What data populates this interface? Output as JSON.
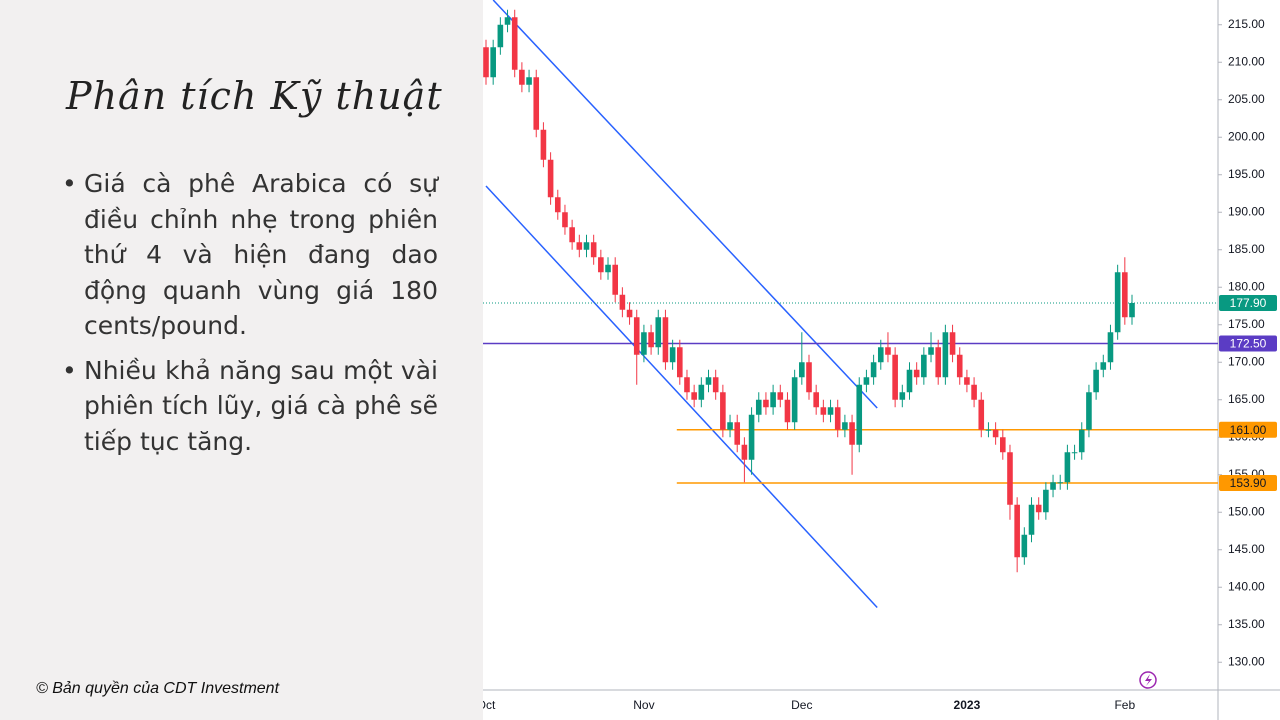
{
  "slide": {
    "title": "Phân tích Kỹ thuật",
    "bullets": [
      "Giá cà phê Arabica có sự điều chỉnh nhẹ trong phiên thứ 4 và hiện đang dao động quanh vùng giá 180 cents/pound.",
      "Nhiều khả năng sau một vài phiên tích lũy, giá cà phê sẽ tiếp tục tăng."
    ],
    "footer": "© Bản quyền của CDT Investment"
  },
  "chart_data": {
    "type": "candlestick",
    "up_color": "#089981",
    "down_color": "#f23645",
    "categories": [
      "Oct",
      null,
      null,
      null,
      null,
      null,
      null,
      null,
      null,
      null,
      null,
      null,
      null,
      null,
      null,
      null,
      null,
      null,
      null,
      null,
      null,
      null,
      "Nov",
      null,
      null,
      null,
      null,
      null,
      null,
      null,
      null,
      null,
      null,
      null,
      null,
      null,
      null,
      null,
      null,
      null,
      null,
      null,
      null,
      null,
      "Dec",
      null,
      null,
      null,
      null,
      null,
      null,
      null,
      null,
      null,
      null,
      null,
      null,
      null,
      null,
      null,
      null,
      null,
      null,
      null,
      null,
      null,
      null,
      "2023",
      null,
      null,
      null,
      null,
      null,
      null,
      null,
      null,
      null,
      null,
      null,
      null,
      null,
      null,
      null,
      null,
      null,
      null,
      null,
      null,
      null,
      "Feb",
      null
    ],
    "open": [
      212,
      208,
      212,
      215,
      216,
      209,
      207,
      208,
      201,
      197,
      192,
      190,
      188,
      186,
      185,
      186,
      184,
      182,
      183,
      179,
      177,
      176,
      171,
      174,
      172,
      176,
      170,
      172,
      168,
      166,
      165,
      167,
      168,
      166,
      161,
      162,
      159,
      157,
      163,
      165,
      164,
      166,
      165,
      162,
      168,
      170,
      166,
      164,
      163,
      164,
      161,
      162,
      159,
      167,
      168,
      170,
      172,
      171,
      165,
      166,
      169,
      168,
      171,
      172,
      168,
      174,
      171,
      168,
      167,
      165,
      161,
      161,
      160,
      158,
      151,
      144,
      147,
      151,
      150,
      153,
      154,
      154,
      158,
      158,
      161,
      166,
      169,
      170,
      174,
      182,
      176
    ],
    "high": [
      213,
      213,
      216,
      217,
      217,
      210,
      209,
      209,
      202,
      198,
      193,
      191,
      189,
      187,
      187,
      187,
      185,
      184,
      184,
      180,
      178,
      177,
      175,
      175,
      177,
      177,
      173,
      173,
      169,
      167,
      168,
      169,
      169,
      167,
      163,
      163,
      160,
      164,
      166,
      166,
      167,
      167,
      166,
      169,
      174,
      171,
      167,
      165,
      165,
      165,
      163,
      163,
      168,
      169,
      171,
      173,
      174,
      172,
      167,
      170,
      170,
      172,
      174,
      173,
      175,
      175,
      172,
      169,
      168,
      166,
      162,
      162,
      161,
      159,
      152,
      148,
      152,
      152,
      154,
      155,
      155,
      159,
      159,
      162,
      167,
      170,
      171,
      175,
      183,
      184,
      179
    ],
    "low": [
      207,
      207,
      211,
      214,
      208,
      206,
      206,
      200,
      196,
      191,
      189,
      187,
      185,
      184,
      184,
      183,
      181,
      181,
      178,
      176,
      175,
      167,
      170,
      171,
      171,
      169,
      169,
      167,
      165,
      164,
      164,
      166,
      165,
      160,
      160,
      158,
      154,
      155,
      162,
      163,
      163,
      164,
      161,
      161,
      167,
      165,
      163,
      162,
      162,
      160,
      160,
      155,
      158,
      166,
      167,
      169,
      170,
      164,
      164,
      165,
      167,
      167,
      170,
      167,
      167,
      170,
      167,
      166,
      164,
      160,
      160,
      159,
      157,
      149,
      142,
      143,
      146,
      149,
      149,
      152,
      153,
      153,
      157,
      157,
      160,
      165,
      168,
      169,
      173,
      175,
      175
    ],
    "close": [
      208,
      212,
      215,
      216,
      209,
      207,
      208,
      201,
      197,
      192,
      190,
      188,
      186,
      185,
      186,
      184,
      182,
      183,
      179,
      177,
      176,
      171,
      174,
      172,
      176,
      170,
      172,
      168,
      166,
      165,
      167,
      168,
      166,
      161,
      162,
      159,
      157,
      163,
      165,
      164,
      166,
      165,
      162,
      168,
      170,
      166,
      164,
      163,
      164,
      161,
      162,
      159,
      167,
      168,
      170,
      172,
      171,
      165,
      166,
      169,
      168,
      171,
      172,
      168,
      174,
      171,
      168,
      167,
      165,
      161,
      161,
      160,
      158,
      151,
      144,
      147,
      151,
      150,
      153,
      154,
      154,
      158,
      158,
      161,
      166,
      169,
      170,
      174,
      182,
      176,
      177.9
    ],
    "ylim": [
      126.3,
      218.3
    ],
    "yticks": [
      {
        "value": 130,
        "label": "130.00"
      },
      {
        "value": 135,
        "label": "135.00"
      },
      {
        "value": 140,
        "label": "140.00"
      },
      {
        "value": 145,
        "label": "145.00"
      },
      {
        "value": 150,
        "label": "150.00"
      },
      {
        "value": 155,
        "label": "155.00"
      },
      {
        "value": 160,
        "label": "160.00"
      },
      {
        "value": 165,
        "label": "165.00"
      },
      {
        "value": 170,
        "label": "170.00"
      },
      {
        "value": 175,
        "label": "175.00"
      },
      {
        "value": 180,
        "label": "180.00"
      },
      {
        "value": 185,
        "label": "185.00"
      },
      {
        "value": 190,
        "label": "190.00"
      },
      {
        "value": 195,
        "label": "195.00"
      },
      {
        "value": 200,
        "label": "200.00"
      },
      {
        "value": 205,
        "label": "205.00"
      },
      {
        "value": 210,
        "label": "210.00"
      },
      {
        "value": 215,
        "label": "215.00"
      }
    ],
    "levels": [
      {
        "value": 177.9,
        "label": "177.90",
        "color": "#089981",
        "dotted": true,
        "start": 0
      },
      {
        "value": 172.5,
        "label": "172.50",
        "color": "#5b3cc4",
        "start": 0
      },
      {
        "value": 161,
        "label": "161.00",
        "color": "#ff9800",
        "start": 27
      },
      {
        "value": 153.9,
        "label": "153.90",
        "color": "#ff9800",
        "start": 27
      }
    ],
    "trendlines": [
      {
        "x": [
          1,
          54.5
        ],
        "y": [
          218.3,
          163.9
        ],
        "color": "#2962ff"
      },
      {
        "x": [
          0,
          54.5
        ],
        "y": [
          193.5,
          137.3
        ],
        "color": "#2962ff"
      }
    ]
  }
}
